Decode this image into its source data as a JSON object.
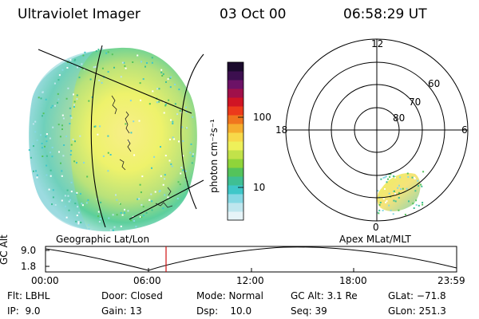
{
  "header": {
    "instrument": "Ultraviolet Imager",
    "date": "03 Oct 00",
    "time": "06:58:29 UT"
  },
  "colorbar": {
    "unit_label": "photon cm⁻²s⁻¹",
    "tick_100": "100",
    "tick_10": "10",
    "colors": [
      "#e6f4f8",
      "#bfe6ee",
      "#86d8e3",
      "#3fc7c8",
      "#3fbf93",
      "#54c35b",
      "#8fd43a",
      "#c2e24a",
      "#eef05a",
      "#f7d94a",
      "#f5ad2e",
      "#f0761e",
      "#ec3a1b",
      "#d01424",
      "#a0104a",
      "#6c1266",
      "#3c0f4f",
      "#1b0a2d"
    ]
  },
  "left_panel": {
    "projection_label": "Geographic Lat/Lon"
  },
  "right_panel": {
    "projection_label": "Apex MLat/MLT",
    "mlt_labels": {
      "top": "12",
      "left": "18",
      "right": "6",
      "bottom": "0"
    },
    "lat_labels": [
      "60",
      "70",
      "80"
    ]
  },
  "altitude_plot": {
    "ylabel": "GC Alt",
    "ytick_top": "9.0",
    "ytick_bottom": "1.8",
    "x_ticks": [
      "00:00",
      "06:00",
      "12:00",
      "18:00",
      "23:59"
    ],
    "current_time_marker_color": "#d01010"
  },
  "footer": {
    "row1": {
      "filter": "Flt: LBHL",
      "door": "Door: Closed",
      "mode": "Mode: Normal",
      "gc_alt": "GC Alt: 3.1 Re",
      "glat": "GLat: −71.8"
    },
    "row2": {
      "ip": "IP:  9.0",
      "gain": "Gain: 13",
      "dsp": "Dsp:    10.0",
      "seq": "Seq: 39",
      "glon": "GLon: 251.3"
    }
  }
}
